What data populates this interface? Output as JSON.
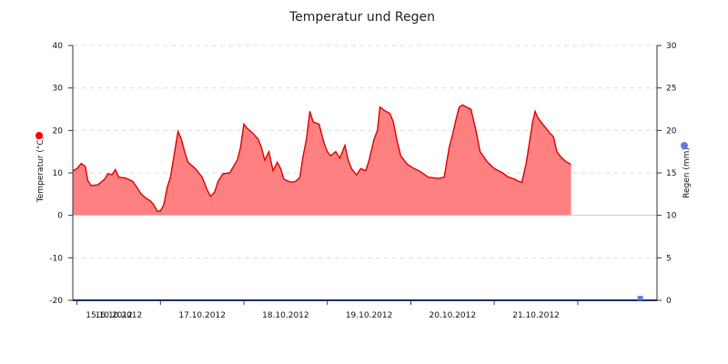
{
  "chart_data": {
    "type": "area",
    "title": "Temperatur und Regen",
    "left_axis": {
      "label": "Temperatur (°C)",
      "ylim": [
        -20,
        40
      ],
      "ticks": [
        40,
        30,
        20,
        10,
        0,
        -10,
        -20
      ],
      "marker_color": "#ff0000"
    },
    "right_axis": {
      "label": "Regen (mm)",
      "ylim": [
        0,
        30
      ],
      "ticks": [
        30,
        25,
        20,
        15,
        10,
        5,
        0
      ],
      "marker_color": "#5c7fd8"
    },
    "x_labels": [
      "15.10.2012",
      "16.10.2012",
      "17.10.2012",
      "18.10.2012",
      "19.10.2012",
      "20.10.2012",
      "21.10.2012"
    ],
    "x_range_days": [
      14.95,
      21.95
    ],
    "grid": true,
    "series": [
      {
        "axis": "left",
        "fill_color": "#ff8080",
        "line_color": "#dd0000",
        "points": [
          [
            14.95,
            10.5
          ],
          [
            15.0,
            11.0
          ],
          [
            15.05,
            12.2
          ],
          [
            15.1,
            11.5
          ],
          [
            15.13,
            8.2
          ],
          [
            15.17,
            7.0
          ],
          [
            15.25,
            7.2
          ],
          [
            15.33,
            8.5
          ],
          [
            15.37,
            9.8
          ],
          [
            15.42,
            9.6
          ],
          [
            15.46,
            10.8
          ],
          [
            15.5,
            9.0
          ],
          [
            15.58,
            8.8
          ],
          [
            15.67,
            8.0
          ],
          [
            15.72,
            6.5
          ],
          [
            15.77,
            5.0
          ],
          [
            15.83,
            4.0
          ],
          [
            15.88,
            3.4
          ],
          [
            15.92,
            2.5
          ],
          [
            15.96,
            1.0
          ],
          [
            16.0,
            1.0
          ],
          [
            16.04,
            2.5
          ],
          [
            16.08,
            6.5
          ],
          [
            16.12,
            9.0
          ],
          [
            16.17,
            15.0
          ],
          [
            16.21,
            19.8
          ],
          [
            16.25,
            18.0
          ],
          [
            16.29,
            15.0
          ],
          [
            16.33,
            12.5
          ],
          [
            16.42,
            11.0
          ],
          [
            16.5,
            9.0
          ],
          [
            16.56,
            6.0
          ],
          [
            16.6,
            4.5
          ],
          [
            16.65,
            5.5
          ],
          [
            16.69,
            8.0
          ],
          [
            16.75,
            9.8
          ],
          [
            16.83,
            10.0
          ],
          [
            16.92,
            13.0
          ],
          [
            16.96,
            16.0
          ],
          [
            17.0,
            21.5
          ],
          [
            17.04,
            20.5
          ],
          [
            17.1,
            19.5
          ],
          [
            17.17,
            18.0
          ],
          [
            17.21,
            16.0
          ],
          [
            17.25,
            13.0
          ],
          [
            17.3,
            15.0
          ],
          [
            17.35,
            10.5
          ],
          [
            17.4,
            12.5
          ],
          [
            17.44,
            11.0
          ],
          [
            17.48,
            8.5
          ],
          [
            17.56,
            7.8
          ],
          [
            17.62,
            8.0
          ],
          [
            17.67,
            9.0
          ],
          [
            17.71,
            14.0
          ],
          [
            17.75,
            18.0
          ],
          [
            17.79,
            24.5
          ],
          [
            17.83,
            22.0
          ],
          [
            17.9,
            21.5
          ],
          [
            17.96,
            17.0
          ],
          [
            18.0,
            15.0
          ],
          [
            18.04,
            14.0
          ],
          [
            18.1,
            15.0
          ],
          [
            18.15,
            13.5
          ],
          [
            18.21,
            16.5
          ],
          [
            18.25,
            13.0
          ],
          [
            18.29,
            11.0
          ],
          [
            18.35,
            9.5
          ],
          [
            18.4,
            11.0
          ],
          [
            18.46,
            10.5
          ],
          [
            18.5,
            13.0
          ],
          [
            18.56,
            18.0
          ],
          [
            18.6,
            20.0
          ],
          [
            18.63,
            25.5
          ],
          [
            18.7,
            24.5
          ],
          [
            18.75,
            24.0
          ],
          [
            18.79,
            22.0
          ],
          [
            18.83,
            18.0
          ],
          [
            18.88,
            14.0
          ],
          [
            18.96,
            12.0
          ],
          [
            19.04,
            11.0
          ],
          [
            19.1,
            10.5
          ],
          [
            19.21,
            9.0
          ],
          [
            19.33,
            8.7
          ],
          [
            19.4,
            9.0
          ],
          [
            19.46,
            16.0
          ],
          [
            19.5,
            19.0
          ],
          [
            19.54,
            22.5
          ],
          [
            19.58,
            25.5
          ],
          [
            19.62,
            26.0
          ],
          [
            19.67,
            25.5
          ],
          [
            19.72,
            25.0
          ],
          [
            19.78,
            20.0
          ],
          [
            19.83,
            15.0
          ],
          [
            19.92,
            12.5
          ],
          [
            20.0,
            11.0
          ],
          [
            20.1,
            10.0
          ],
          [
            20.17,
            9.0
          ],
          [
            20.25,
            8.5
          ],
          [
            20.29,
            8.0
          ],
          [
            20.33,
            7.8
          ],
          [
            20.38,
            12.0
          ],
          [
            20.42,
            17.0
          ],
          [
            20.46,
            22.0
          ],
          [
            20.49,
            24.5
          ],
          [
            20.51,
            23.5
          ],
          [
            20.54,
            22.5
          ],
          [
            20.6,
            21.0
          ],
          [
            20.66,
            19.5
          ],
          [
            20.71,
            18.5
          ],
          [
            20.75,
            15.0
          ],
          [
            20.81,
            13.5
          ],
          [
            20.87,
            12.5
          ],
          [
            20.92,
            12.0
          ]
        ]
      },
      {
        "axis": "right",
        "points": [
          [
            21.75,
            0.2
          ]
        ]
      }
    ]
  }
}
